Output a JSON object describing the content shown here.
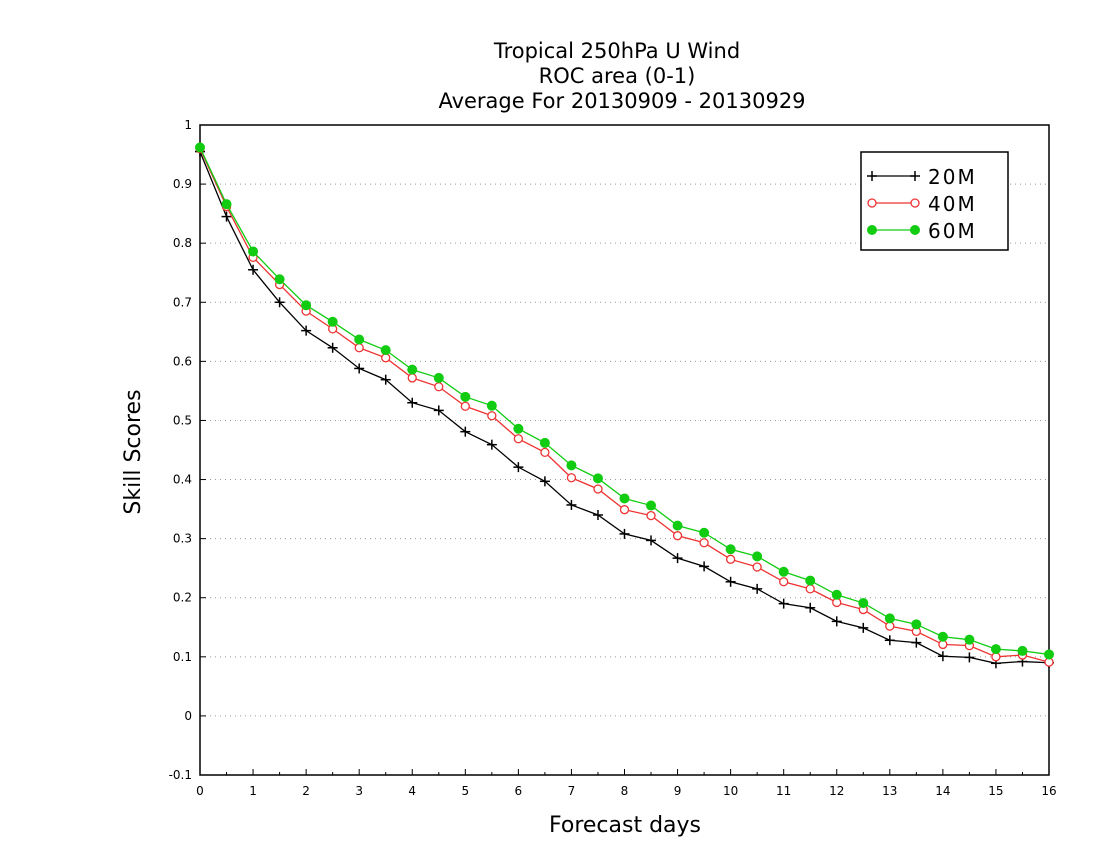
{
  "chart_data": {
    "type": "line",
    "title": [
      "Tropical 250hPa U Wind",
      "ROC area (0-1)",
      "Average For 20130909 - 20130929"
    ],
    "xlabel": "Forecast days",
    "ylabel": "Skill Scores",
    "xlim": [
      0,
      16
    ],
    "ylim": [
      -0.1,
      1
    ],
    "xticks": [
      "0",
      "1",
      "2",
      "3",
      "4",
      "5",
      "6",
      "7",
      "8",
      "9",
      "10",
      "11",
      "12",
      "13",
      "14",
      "15",
      "16"
    ],
    "yticks": [
      "-0.1",
      "0",
      "0.1",
      "0.2",
      "0.3",
      "0.4",
      "0.5",
      "0.6",
      "0.7",
      "0.8",
      "0.9",
      "1"
    ],
    "grid": "horizontal-dotted",
    "legend_position": "top-right",
    "x": [
      0,
      0.5,
      1,
      1.5,
      2,
      2.5,
      3,
      3.5,
      4,
      4.5,
      5,
      5.5,
      6,
      6.5,
      7,
      7.5,
      8,
      8.5,
      9,
      9.5,
      10,
      10.5,
      11,
      11.5,
      12,
      12.5,
      13,
      13.5,
      14,
      14.5,
      15,
      15.5,
      16
    ],
    "series": [
      {
        "name": "20M",
        "color": "#000000",
        "marker": "plus",
        "values": [
          0.955,
          0.845,
          0.755,
          0.7,
          0.652,
          0.623,
          0.588,
          0.569,
          0.53,
          0.517,
          0.481,
          0.459,
          0.421,
          0.397,
          0.357,
          0.34,
          0.308,
          0.297,
          0.267,
          0.253,
          0.227,
          0.215,
          0.19,
          0.183,
          0.16,
          0.149,
          0.128,
          0.124,
          0.101,
          0.099,
          0.089,
          0.092,
          0.09
        ]
      },
      {
        "name": "40M",
        "color": "#ee3333",
        "marker": "open-circle",
        "values": [
          0.96,
          0.862,
          0.776,
          0.73,
          0.685,
          0.655,
          0.623,
          0.606,
          0.572,
          0.557,
          0.524,
          0.508,
          0.469,
          0.446,
          0.403,
          0.384,
          0.349,
          0.339,
          0.305,
          0.293,
          0.265,
          0.252,
          0.227,
          0.215,
          0.192,
          0.18,
          0.152,
          0.143,
          0.121,
          0.119,
          0.1,
          0.103,
          0.091
        ]
      },
      {
        "name": "60M",
        "color": "#11cc11",
        "marker": "filled-circle",
        "values": [
          0.962,
          0.866,
          0.786,
          0.739,
          0.695,
          0.667,
          0.637,
          0.619,
          0.586,
          0.572,
          0.54,
          0.525,
          0.486,
          0.462,
          0.424,
          0.402,
          0.368,
          0.356,
          0.322,
          0.31,
          0.282,
          0.27,
          0.244,
          0.229,
          0.205,
          0.191,
          0.165,
          0.155,
          0.134,
          0.129,
          0.113,
          0.11,
          0.104
        ]
      }
    ]
  }
}
